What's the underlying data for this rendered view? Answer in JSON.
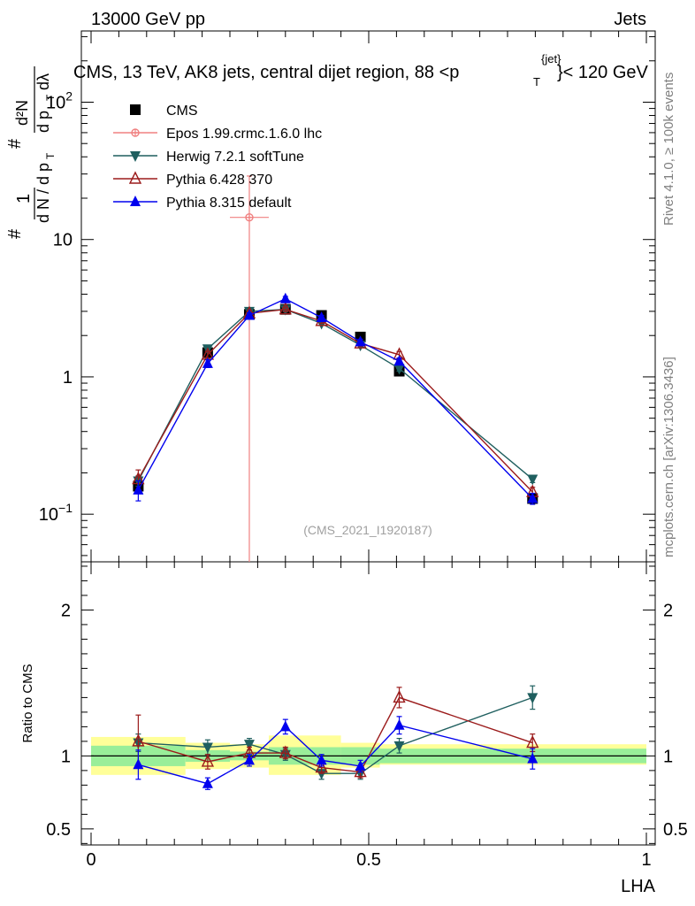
{
  "header": {
    "energy": "13000 GeV pp",
    "process": "Jets",
    "title_main": "CMS, 13 TeV, AK8 jets, central dijet region, 88 <p",
    "title_sup": "{jet}",
    "title_sub": "T",
    "title_end": "}< 120 GeV"
  },
  "side_labels": {
    "rivet": "Rivet 4.1.0, ≥ 100k events",
    "mcplots": "mcplots.cern.ch [arXiv:1306.3436]"
  },
  "watermark": "(CMS_2021_I1920187)",
  "ylabel_main": {
    "hash": "#",
    "one": "1",
    "dNdpT": "d N / d p",
    "T": "T",
    "d2N": "d²N",
    "dpT": "d p",
    "dlambda": "dλ"
  },
  "ratio_ylabel": "Ratio to CMS",
  "xlabel": "LHA",
  "chart_data": [
    {
      "type": "scatter",
      "title": "CMS, 13 TeV, AK8 jets, central dijet region, 88 <p_T^{jet}< 120 GeV",
      "xlabel": "LHA",
      "ylabel": "1/(dN/dpT) d2N/(dpT dlambda)",
      "yscale": "log",
      "xlim": [
        0,
        1
      ],
      "ylim": [
        0.045,
        330
      ],
      "y_ticks": [
        "10^-1",
        "1",
        "10",
        "10^2"
      ],
      "series": [
        {
          "name": "CMS",
          "color": "#000000",
          "marker": "square",
          "x": [
            0.085,
            0.21,
            0.285,
            0.35,
            0.415,
            0.485,
            0.555,
            0.795
          ],
          "y": [
            0.16,
            1.5,
            2.85,
            3.1,
            2.8,
            1.95,
            1.1,
            0.13
          ],
          "yerr": [
            0.01,
            0.08,
            0.15,
            0.15,
            0.1,
            0.08,
            0.06,
            0.01
          ]
        },
        {
          "name": "Epos 1.99.crmc.1.6.0 lhc",
          "color": "#f08080",
          "marker": "open-cross",
          "x": [
            0.285
          ],
          "y": [
            14.5
          ],
          "yerr_low": [
            14.45
          ],
          "yerr_high": [
            14.5
          ],
          "xerr": [
            0.035
          ]
        },
        {
          "name": "Herwig 7.2.1 softTune",
          "color": "#1f5f5f",
          "marker": "triangle-down",
          "x": [
            0.085,
            0.21,
            0.285,
            0.35,
            0.415,
            0.485,
            0.555,
            0.795
          ],
          "y": [
            0.175,
            1.6,
            3.0,
            3.1,
            2.45,
            1.7,
            1.15,
            0.18
          ],
          "yerr": [
            0.015,
            0.06,
            0.1,
            0.1,
            0.08,
            0.06,
            0.05,
            0.01
          ]
        },
        {
          "name": "Pythia 6.428 370",
          "color": "#9b1b1b",
          "marker": "triangle-open",
          "x": [
            0.085,
            0.21,
            0.285,
            0.35,
            0.415,
            0.485,
            0.555,
            0.795
          ],
          "y": [
            0.18,
            1.45,
            2.9,
            3.1,
            2.55,
            1.75,
            1.45,
            0.145
          ],
          "yerr": [
            0.03,
            0.08,
            0.12,
            0.12,
            0.1,
            0.08,
            0.08,
            0.012
          ]
        },
        {
          "name": "Pythia 8.315 default",
          "color": "#0000ee",
          "marker": "triangle-up",
          "x": [
            0.085,
            0.21,
            0.285,
            0.35,
            0.415,
            0.485,
            0.555,
            0.795
          ],
          "y": [
            0.15,
            1.25,
            2.8,
            3.7,
            2.7,
            1.8,
            1.3,
            0.13
          ],
          "yerr": [
            0.025,
            0.08,
            0.12,
            0.15,
            0.1,
            0.08,
            0.07,
            0.012
          ]
        }
      ]
    },
    {
      "type": "scatter",
      "title": "Ratio to CMS",
      "xlabel": "LHA",
      "ylabel": "Ratio to CMS",
      "xlim": [
        0,
        1
      ],
      "ylim": [
        0.39,
        2.33
      ],
      "y_ticks": [
        "0.5",
        "1",
        "2"
      ],
      "x_ticks": [
        "0",
        "0.5",
        "1"
      ],
      "bands": {
        "x_edges": [
          0,
          0.17,
          0.25,
          0.32,
          0.45,
          0.52,
          1.0
        ],
        "green": [
          [
            0.93,
            1.07
          ],
          [
            0.96,
            1.04
          ],
          [
            0.97,
            1.03
          ],
          [
            0.94,
            1.06
          ],
          [
            0.94,
            1.06
          ],
          [
            0.95,
            1.05
          ]
        ],
        "yellow": [
          [
            0.87,
            1.13
          ],
          [
            0.91,
            1.09
          ],
          [
            0.92,
            1.08
          ],
          [
            0.87,
            1.14
          ],
          [
            0.92,
            1.09
          ],
          [
            0.94,
            1.08
          ]
        ],
        "centers": [
          0.085,
          0.21,
          0.285,
          0.385,
          0.485,
          0.76
        ]
      },
      "series": [
        {
          "name": "Herwig 7.2.1 softTune",
          "color": "#1f5f5f",
          "marker": "triangle-down",
          "x": [
            0.085,
            0.21,
            0.285,
            0.35,
            0.415,
            0.485,
            0.555,
            0.795
          ],
          "y": [
            1.09,
            1.06,
            1.08,
            1.01,
            0.88,
            0.88,
            1.07,
            1.4
          ],
          "yerr": [
            0.06,
            0.05,
            0.04,
            0.04,
            0.04,
            0.04,
            0.05,
            0.08
          ]
        },
        {
          "name": "Pythia 6.428 370",
          "color": "#9b1b1b",
          "marker": "triangle-open",
          "x": [
            0.085,
            0.21,
            0.285,
            0.35,
            0.415,
            0.485,
            0.555,
            0.795
          ],
          "y": [
            1.1,
            0.96,
            1.02,
            1.02,
            0.92,
            0.89,
            1.4,
            1.09
          ],
          "yerr": [
            0.18,
            0.05,
            0.04,
            0.04,
            0.04,
            0.04,
            0.07,
            0.06
          ]
        },
        {
          "name": "Pythia 8.315 default",
          "color": "#0000ee",
          "marker": "triangle-up",
          "x": [
            0.085,
            0.21,
            0.285,
            0.35,
            0.415,
            0.485,
            0.555,
            0.795
          ],
          "y": [
            0.94,
            0.81,
            0.97,
            1.2,
            0.97,
            0.93,
            1.21,
            0.98
          ],
          "yerr": [
            0.1,
            0.04,
            0.04,
            0.05,
            0.04,
            0.04,
            0.06,
            0.07
          ]
        }
      ]
    }
  ]
}
